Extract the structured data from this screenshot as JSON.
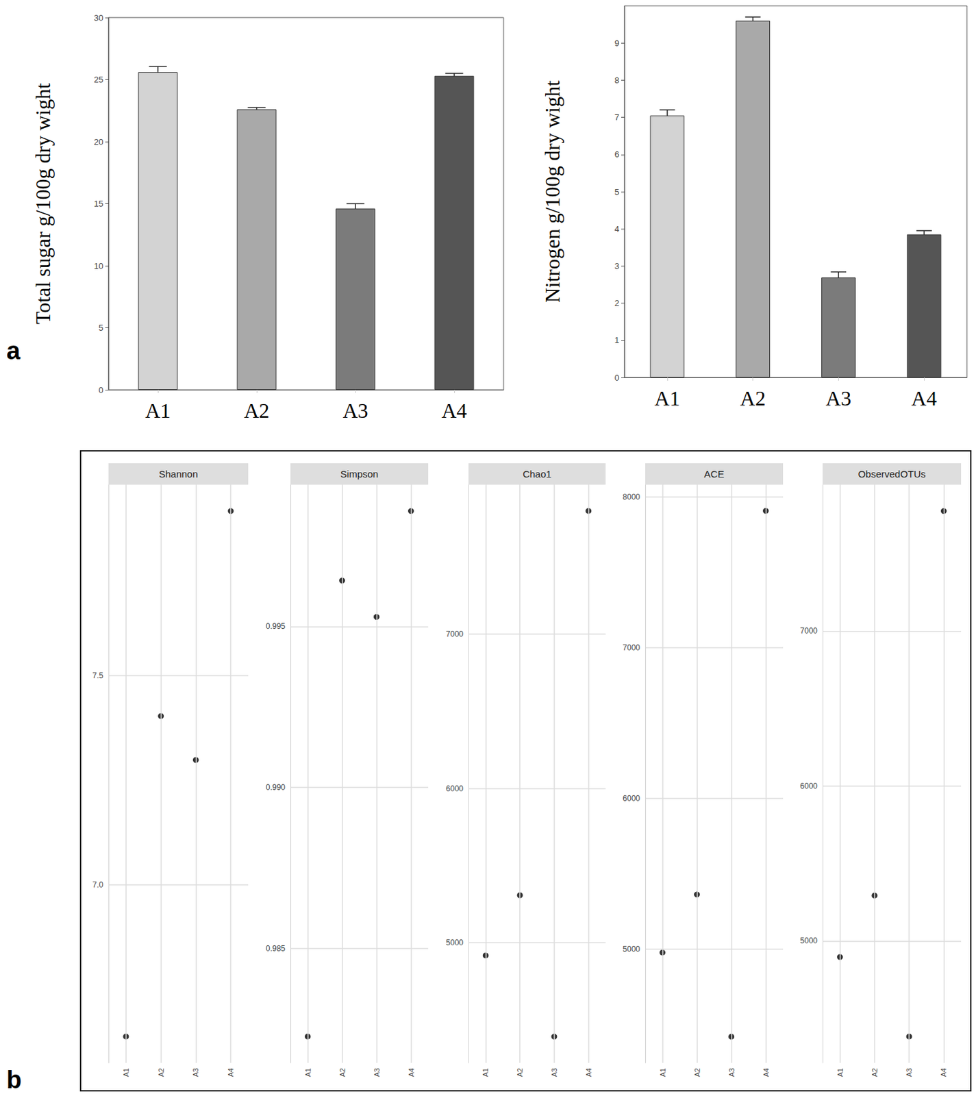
{
  "panel_labels": [
    "a",
    "b"
  ],
  "chart_data": [
    {
      "type": "bar",
      "ylabel": "Total sugar g/100g dry wight",
      "categories": [
        "A1",
        "A2",
        "A3",
        "A4"
      ],
      "values": [
        25.6,
        22.6,
        14.6,
        25.3
      ],
      "errors": [
        0.45,
        0.15,
        0.4,
        0.2
      ],
      "colors": [
        "#d3d3d3",
        "#a9a9a9",
        "#7b7b7b",
        "#555555"
      ],
      "ylim": [
        0,
        30
      ],
      "yticks": [
        0,
        5,
        10,
        15,
        20,
        25,
        30
      ],
      "grid": false
    },
    {
      "type": "bar",
      "ylabel": "Nitrogen g/100g dry wight",
      "categories": [
        "A1",
        "A2",
        "A3",
        "A4"
      ],
      "values": [
        7.05,
        9.6,
        2.69,
        3.85
      ],
      "errors": [
        0.15,
        0.1,
        0.15,
        0.1
      ],
      "colors": [
        "#d3d3d3",
        "#a9a9a9",
        "#7b7b7b",
        "#555555"
      ],
      "ylim": [
        0,
        10
      ],
      "yticks": [
        0,
        1,
        2,
        3,
        4,
        5,
        6,
        7,
        8,
        9
      ],
      "grid": false
    },
    {
      "type": "scatter",
      "title": "Shannon",
      "categories": [
        "A1",
        "A2",
        "A3",
        "A4"
      ],
      "values": [
        6.637,
        7.403,
        7.298,
        7.893
      ],
      "color": "#000000",
      "marker": "circle",
      "ylim": [
        6.574,
        7.956
      ],
      "yticks": [
        {
          "value": 7,
          "label": "7.0"
        },
        {
          "value": 7.5,
          "label": "7.5"
        }
      ],
      "grid": true
    },
    {
      "type": "scatter",
      "title": "Simpson",
      "categories": [
        "A1",
        "A2",
        "A3",
        "A4"
      ],
      "values": [
        0.98226,
        0.99643,
        0.9953,
        0.99859
      ],
      "color": "#000000",
      "marker": "circle",
      "ylim": [
        0.98144,
        0.99941
      ],
      "yticks": [
        0.985,
        {
          "value": 0.99,
          "label": "0.990"
        },
        0.995
      ],
      "grid": true
    },
    {
      "type": "scatter",
      "title": "Chao1",
      "categories": [
        "A1",
        "A2",
        "A3",
        "A4"
      ],
      "values": [
        4918,
        5308,
        4392,
        7798
      ],
      "color": "#000000",
      "marker": "circle",
      "ylim": [
        4222,
        7968
      ],
      "yticks": [
        5000,
        6000,
        7000
      ],
      "grid": true
    },
    {
      "type": "scatter",
      "title": "ACE",
      "categories": [
        "A1",
        "A2",
        "A3",
        "A4"
      ],
      "values": [
        4977,
        5362,
        4419,
        7907
      ],
      "color": "#000000",
      "marker": "circle",
      "ylim": [
        4245,
        8081
      ],
      "yticks": [
        5000,
        6000,
        7000,
        8000
      ],
      "grid": true
    },
    {
      "type": "scatter",
      "title": "ObservedOTUs",
      "categories": [
        "A1",
        "A2",
        "A3",
        "A4"
      ],
      "values": [
        4896,
        5293,
        4383,
        7775
      ],
      "color": "#000000",
      "marker": "circle",
      "ylim": [
        4213,
        7945
      ],
      "yticks": [
        5000,
        6000,
        7000
      ],
      "grid": true
    }
  ]
}
